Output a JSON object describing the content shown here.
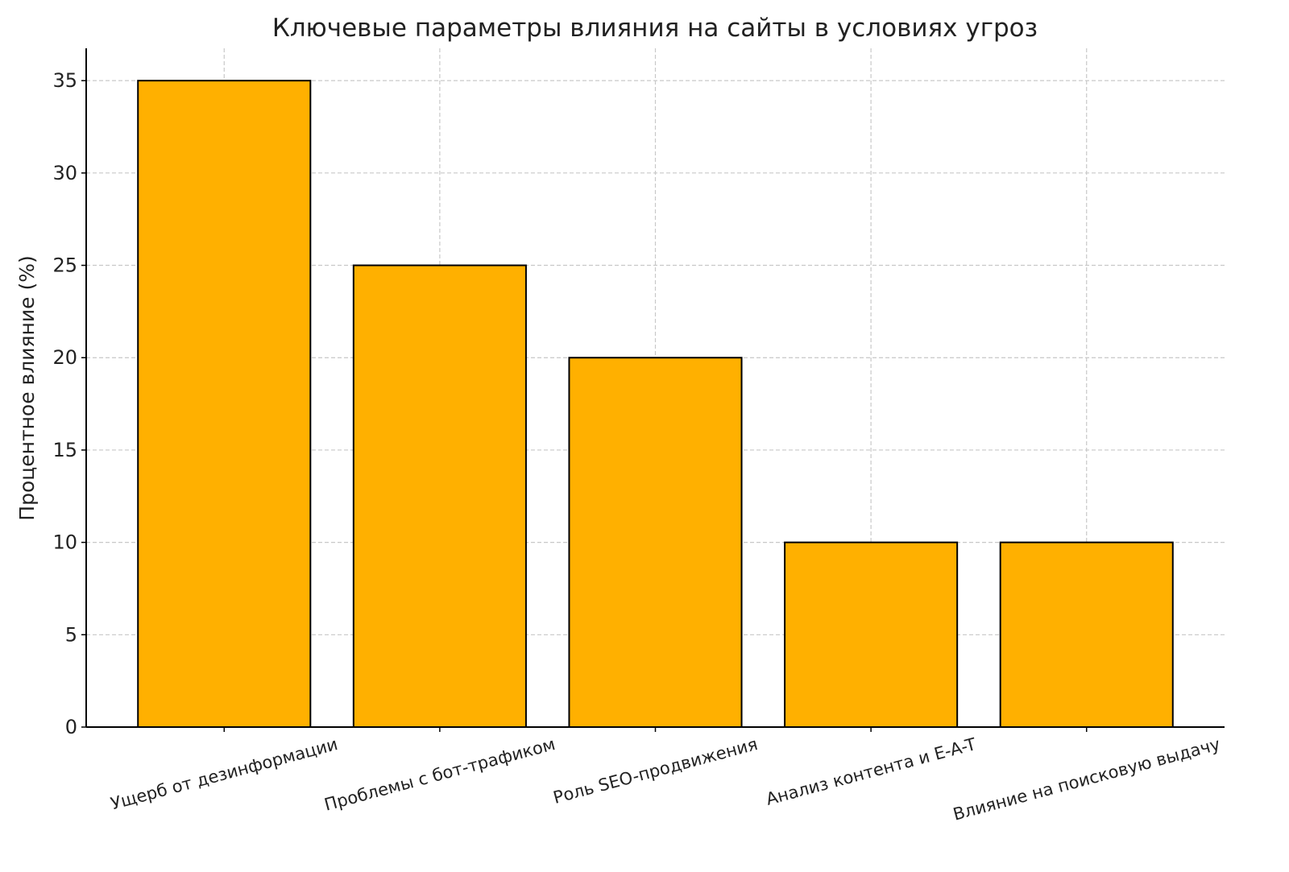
{
  "chart_data": {
    "type": "bar",
    "title": "Ключевые параметры влияния на сайты в условиях угроз",
    "xlabel": "",
    "ylabel": "Процентное влияние (%)",
    "categories": [
      "Ущерб от дезинформации",
      "Проблемы с бот-трафиком",
      "Роль SEO-продвижения",
      "Анализ контента и E-A-T",
      "Влияние на поисковую выдачу"
    ],
    "values": [
      35,
      25,
      20,
      10,
      10
    ],
    "ylim": [
      0,
      36.75
    ],
    "yticks": [
      0,
      5,
      10,
      15,
      20,
      25,
      30,
      35
    ],
    "grid": true,
    "bar_color": "#FFB000",
    "edge_color": "#000000"
  }
}
